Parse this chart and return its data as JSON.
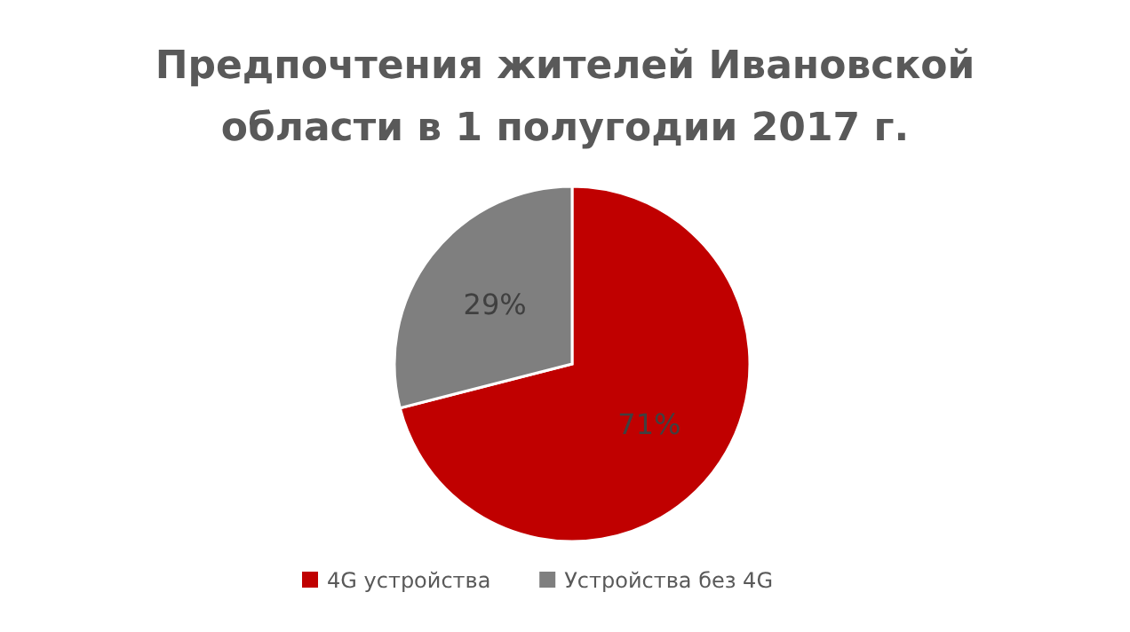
{
  "chart_data": {
    "type": "pie",
    "title": "Предпочтения жителей Ивановской\nобласти в 1 полугодии 2017 г.",
    "categories": [
      "4G устройства",
      "Устройства без 4G"
    ],
    "values": [
      71,
      29
    ],
    "colors": [
      "#c00000",
      "#7f7f7f"
    ],
    "value_labels": [
      "71%",
      "29%"
    ],
    "legend": "bottom"
  }
}
